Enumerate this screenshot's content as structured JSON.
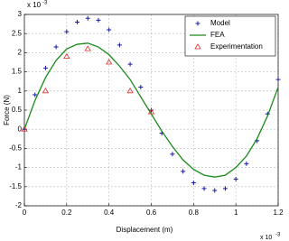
{
  "chart_data": {
    "type": "line",
    "xlabel": "Displacement (m)",
    "ylabel": "Force (N)",
    "x_scale": {
      "base": "x 10",
      "exponent": "-3"
    },
    "y_scale": {
      "base": "x 10",
      "exponent": "-3"
    },
    "xlim": [
      0,
      1.2
    ],
    "xticks": [
      0,
      0.2,
      0.4,
      0.6,
      0.8,
      1,
      1.2
    ],
    "ylim": [
      -2,
      3
    ],
    "yticks": [
      -2,
      -1.5,
      -1,
      -0.5,
      0,
      0.5,
      1,
      1.5,
      2,
      2.5,
      3
    ],
    "grid": true,
    "legend": "upper right",
    "series": [
      {
        "name": "Model",
        "color": "#1a1aa0",
        "style": "plus",
        "x": [
          0,
          0.05,
          0.1,
          0.15,
          0.2,
          0.25,
          0.3,
          0.35,
          0.4,
          0.45,
          0.5,
          0.55,
          0.6,
          0.65,
          0.7,
          0.75,
          0.8,
          0.85,
          0.9,
          0.95,
          1,
          1.05,
          1.1,
          1.15,
          1.2
        ],
        "values": [
          0,
          0.9,
          1.6,
          2.15,
          2.55,
          2.8,
          2.9,
          2.85,
          2.6,
          2.2,
          1.7,
          1.1,
          0.5,
          -0.1,
          -0.65,
          -1.1,
          -1.4,
          -1.55,
          -1.6,
          -1.55,
          -1.3,
          -0.9,
          -0.3,
          0.4,
          1.3
        ]
      },
      {
        "name": "FEA",
        "color": "#1a8a1a",
        "style": "line",
        "x": [
          0,
          0.05,
          0.1,
          0.15,
          0.2,
          0.25,
          0.3,
          0.35,
          0.4,
          0.45,
          0.5,
          0.55,
          0.6,
          0.65,
          0.7,
          0.75,
          0.8,
          0.85,
          0.9,
          0.95,
          1,
          1.05,
          1.1,
          1.15,
          1.2
        ],
        "values": [
          0,
          0.75,
          1.35,
          1.8,
          2.1,
          2.22,
          2.25,
          2.15,
          1.95,
          1.65,
          1.3,
          0.85,
          0.4,
          -0.05,
          -0.45,
          -0.8,
          -1.05,
          -1.2,
          -1.25,
          -1.2,
          -1,
          -0.7,
          -0.25,
          0.35,
          1.1
        ]
      },
      {
        "name": "Experimentation",
        "color": "#e03030",
        "style": "triangle",
        "x": [
          0,
          0.1,
          0.2,
          0.3,
          0.4,
          0.5,
          0.6
        ],
        "values": [
          0,
          1,
          1.9,
          2.1,
          1.75,
          1,
          0.45
        ]
      }
    ]
  }
}
